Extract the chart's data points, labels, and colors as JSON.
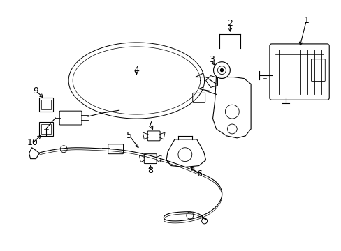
{
  "background_color": "#ffffff",
  "line_color": "#000000",
  "fig_width": 4.89,
  "fig_height": 3.6,
  "dpi": 100,
  "label_fontsize": 9,
  "line_width": 0.8
}
